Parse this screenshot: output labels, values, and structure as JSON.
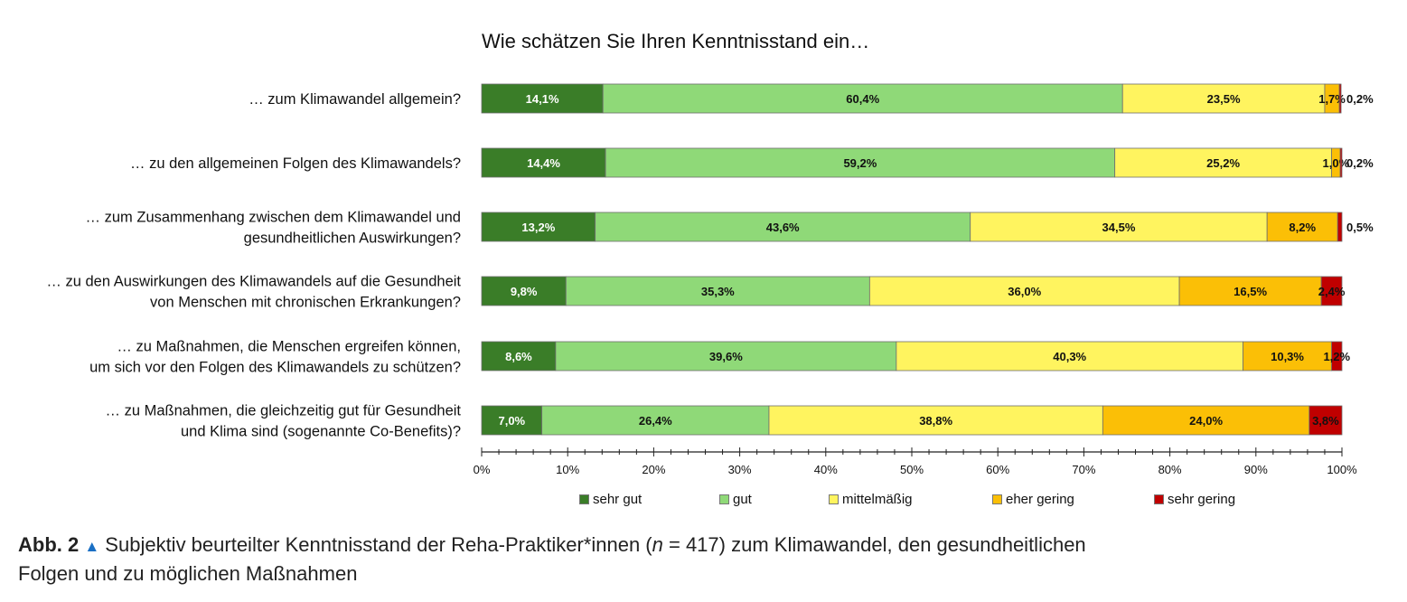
{
  "chart_data": {
    "type": "bar",
    "orientation": "horizontal",
    "stacked": "100%",
    "title": "Wie schätzen Sie Ihren Kenntnisstand ein…",
    "categories": [
      [
        "… zum Klimawandel allgemein?"
      ],
      [
        "… zu den allgemeinen Folgen des Klimawandels?"
      ],
      [
        "… zum Zusammenhang zwischen dem Klimawandel und",
        "gesundheitlichen Auswirkungen?"
      ],
      [
        "… zu den Auswirkungen des Klimawandels auf die Gesundheit",
        "von Menschen mit chronischen Erkrankungen?"
      ],
      [
        "… zu Maßnahmen, die Menschen ergreifen können,",
        "um sich vor den Folgen des Klimawandels zu schützen?"
      ],
      [
        "… zu Maßnahmen, die gleichzeitig gut für Gesundheit",
        "und  Klima sind (sogenannte Co-Benefits)?"
      ]
    ],
    "series": [
      {
        "name": "sehr gut",
        "color": "#3a7d28",
        "label_color": "#ffffff",
        "values": [
          14.1,
          14.4,
          13.2,
          9.8,
          8.6,
          7.0
        ],
        "labels": [
          "14,1%",
          "14,4%",
          "13,2%",
          "9,8%",
          "8,6%",
          "7,0%"
        ]
      },
      {
        "name": "gut",
        "color": "#8fd978",
        "label_color": "#111111",
        "values": [
          60.4,
          59.2,
          43.6,
          35.3,
          39.6,
          26.4
        ],
        "labels": [
          "60,4%",
          "59,2%",
          "43,6%",
          "35,3%",
          "39,6%",
          "26,4%"
        ]
      },
      {
        "name": "mittelmäßig",
        "color": "#fff45f",
        "label_color": "#111111",
        "values": [
          23.5,
          25.2,
          34.5,
          36.0,
          40.3,
          38.8
        ],
        "labels": [
          "23,5%",
          "25,2%",
          "34,5%",
          "36,0%",
          "40,3%",
          "38,8%"
        ]
      },
      {
        "name": "eher gering",
        "color": "#fbbf06",
        "label_color": "#111111",
        "values": [
          1.7,
          1.0,
          8.2,
          16.5,
          10.3,
          24.0
        ],
        "labels": [
          "1,7%",
          "1,0%",
          "8,2%",
          "16,5%",
          "10,3%",
          "24,0%"
        ]
      },
      {
        "name": "sehr gering",
        "color": "#c00000",
        "label_color": "#111111",
        "values": [
          0.2,
          0.2,
          0.5,
          2.4,
          1.2,
          3.8
        ],
        "labels": [
          "0,2%",
          "0,2%",
          "0,5%",
          "2,4%",
          "1,2%",
          "3,8%"
        ]
      }
    ],
    "xlim": [
      0,
      100
    ],
    "x_ticks": [
      "0%",
      "10%",
      "20%",
      "30%",
      "40%",
      "50%",
      "60%",
      "70%",
      "80%",
      "90%",
      "100%"
    ],
    "legend_position": "bottom",
    "grid": false
  },
  "caption": {
    "label": "Abb. 2",
    "marker": "▲",
    "text_before_n": " Subjektiv beurteilter Kenntnisstand der Reha-Praktiker*innen (",
    "n_symbol": "n",
    "text_after_n": " = 417) zum Klimawandel, den gesundheitlichen",
    "line2": "Folgen und zu möglichen Maßnahmen"
  }
}
